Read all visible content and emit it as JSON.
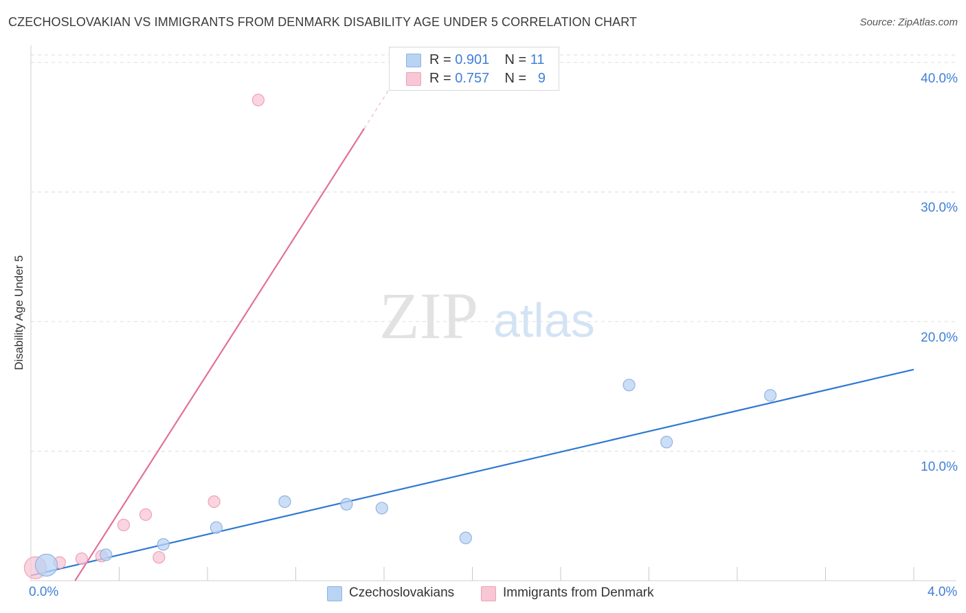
{
  "title": "CZECHOSLOVAKIAN VS IMMIGRANTS FROM DENMARK DISABILITY AGE UNDER 5 CORRELATION CHART",
  "source": "Source: ZipAtlas.com",
  "watermark": {
    "zip": "ZIP",
    "atlas": "atlas"
  },
  "legend": {
    "rows": [
      {
        "r_label": "R = ",
        "r_value": "0.901",
        "n_label": "N = ",
        "n_value": "11"
      },
      {
        "r_label": "R = ",
        "r_value": "0.757",
        "n_label": "N = ",
        "n_value": "9"
      }
    ]
  },
  "colors": {
    "blue_fill": "#b9d3f3",
    "blue_stroke": "#8fb3e3",
    "blue_line": "#2f78d2",
    "pink_fill": "#f8c6d4",
    "pink_stroke": "#eea2b8",
    "pink_line": "#e36f98",
    "grid": "#dcdcdc",
    "tick_text": "#3f7fd6"
  },
  "chart_data": {
    "type": "scatter",
    "title": "CZECHOSLOVAKIAN VS IMMIGRANTS FROM DENMARK DISABILITY AGE UNDER 5 CORRELATION CHART",
    "xlabel": "",
    "ylabel": "Disability Age Under 5",
    "xlim": [
      0,
      4.0
    ],
    "ylim": [
      0,
      41.0
    ],
    "x_tick_labels": [
      "0.0%",
      "4.0%"
    ],
    "y_ticks": [
      10,
      20,
      30,
      40
    ],
    "y_tick_labels": [
      "10.0%",
      "20.0%",
      "30.0%",
      "40.0%"
    ],
    "grid": true,
    "series": [
      {
        "name": "Czechoslovakians",
        "color": "#b9d3f3",
        "points": [
          {
            "x": 0.07,
            "y": 1.2,
            "big": true
          },
          {
            "x": 0.34,
            "y": 2.0
          },
          {
            "x": 0.6,
            "y": 2.8
          },
          {
            "x": 0.84,
            "y": 4.1
          },
          {
            "x": 1.15,
            "y": 6.1
          },
          {
            "x": 1.43,
            "y": 5.9
          },
          {
            "x": 1.59,
            "y": 5.6
          },
          {
            "x": 1.97,
            "y": 3.3
          },
          {
            "x": 2.71,
            "y": 15.1
          },
          {
            "x": 2.88,
            "y": 10.7
          },
          {
            "x": 3.35,
            "y": 14.3
          }
        ],
        "trend": {
          "x0": 0.0,
          "y0": 0.4,
          "x1": 4.0,
          "y1": 16.3
        }
      },
      {
        "name": "Immigrants from Denmark",
        "color": "#f8c6d4",
        "points": [
          {
            "x": 0.02,
            "y": 1.0,
            "big": true
          },
          {
            "x": 0.13,
            "y": 1.4
          },
          {
            "x": 0.23,
            "y": 1.7
          },
          {
            "x": 0.32,
            "y": 1.9
          },
          {
            "x": 0.42,
            "y": 4.3
          },
          {
            "x": 0.52,
            "y": 5.1
          },
          {
            "x": 0.58,
            "y": 1.8
          },
          {
            "x": 0.83,
            "y": 6.1
          },
          {
            "x": 1.03,
            "y": 37.1
          }
        ],
        "trend": {
          "x0": 0.2,
          "y0": 0.0,
          "x1": 1.51,
          "y1": 34.9
        },
        "trend_dashed_to": {
          "x": 1.7,
          "y": 40.0
        }
      }
    ]
  }
}
